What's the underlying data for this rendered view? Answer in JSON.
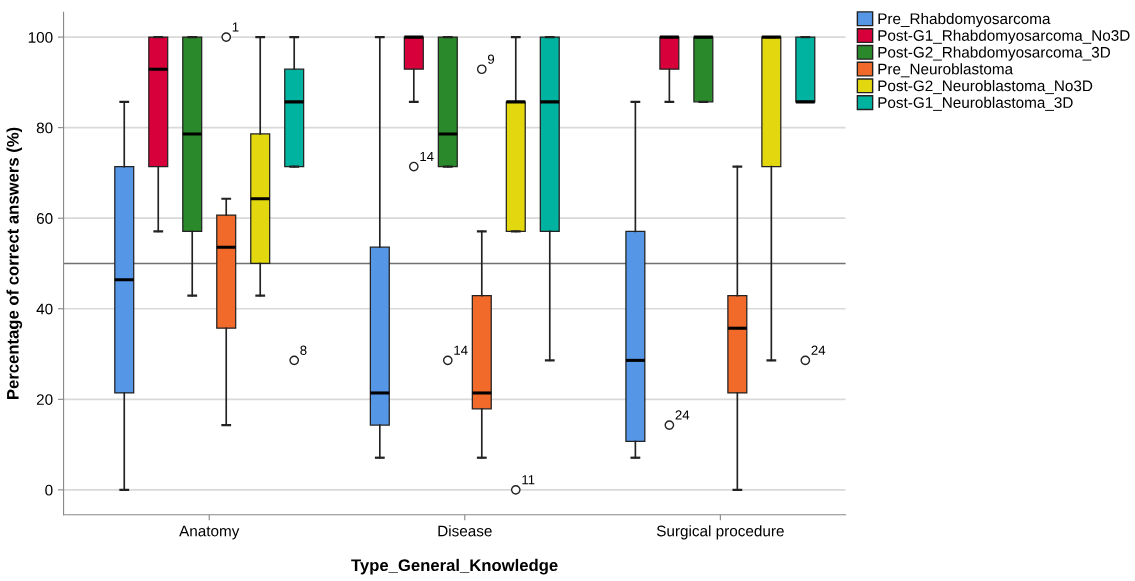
{
  "chart_data": {
    "type": "box",
    "xlabel": "Type_General_Knowledge",
    "ylabel": "Percentage of correct answers (%)",
    "categories": [
      "Anatomy",
      "Disease",
      "Surgical procedure"
    ],
    "ylim": [
      -5.5,
      105.5
    ],
    "yticks": [
      0,
      20,
      40,
      60,
      80,
      100
    ],
    "grid": "y",
    "legend": "top right",
    "ref_lines": [
      {
        "axis": "y",
        "value": 50,
        "color": "#707070"
      }
    ],
    "series": [
      {
        "name": "Pre_Rhabdomyosarcoma",
        "color": "#5596e6",
        "boxes": [
          {
            "low": 0,
            "q1": 21.4,
            "median": 46.4,
            "q3": 71.4,
            "high": 85.7
          },
          {
            "low": 7.1,
            "q1": 14.3,
            "median": 21.4,
            "q3": 53.6,
            "high": 100
          },
          {
            "low": 7.1,
            "q1": 10.7,
            "median": 28.6,
            "q3": 57.1,
            "high": 85.7
          }
        ]
      },
      {
        "name": "Post-G1_Rhabdomyosarcoma_No3D",
        "color": "#d7003a",
        "boxes": [
          {
            "low": 57.1,
            "q1": 71.4,
            "median": 92.9,
            "q3": 100,
            "high": 100
          },
          {
            "low": 85.7,
            "q1": 92.9,
            "median": 100,
            "q3": 100,
            "high": 100,
            "outliers": [
              71.4
            ]
          },
          {
            "low": 85.7,
            "q1": 92.9,
            "median": 100,
            "q3": 100,
            "high": 100,
            "outliers": [
              14.3
            ]
          }
        ]
      },
      {
        "name": "Post-G2_Rhabdomyosarcoma_3D",
        "color": "#2a8a2b",
        "boxes": [
          {
            "low": 42.9,
            "q1": 57.1,
            "median": 78.6,
            "q3": 100,
            "high": 100
          },
          {
            "low": 71.4,
            "q1": 71.4,
            "median": 78.6,
            "q3": 100,
            "high": 100,
            "outliers": [
              28.6
            ]
          },
          {
            "low": 85.7,
            "q1": 85.7,
            "median": 100,
            "q3": 100,
            "high": 100
          }
        ]
      },
      {
        "name": "Pre_Neuroblastoma",
        "color": "#f26a2a",
        "boxes": [
          {
            "low": 14.3,
            "q1": 35.7,
            "median": 53.6,
            "q3": 60.7,
            "high": 64.3,
            "outliers": [
              100
            ]
          },
          {
            "low": 7.1,
            "q1": 17.9,
            "median": 21.4,
            "q3": 42.9,
            "high": 57.1,
            "outliers": [
              92.9
            ]
          },
          {
            "low": 0,
            "q1": 21.4,
            "median": 35.7,
            "q3": 42.9,
            "high": 71.4
          }
        ]
      },
      {
        "name": "Post-G2_Neuroblastoma_No3D",
        "color": "#e3d80f",
        "boxes": [
          {
            "low": 42.9,
            "q1": 50,
            "median": 64.3,
            "q3": 78.6,
            "high": 100
          },
          {
            "low": 57.1,
            "q1": 57.1,
            "median": 85.7,
            "q3": 85.7,
            "high": 100,
            "outliers": [
              0
            ]
          },
          {
            "low": 28.6,
            "q1": 71.4,
            "median": 100,
            "q3": 100,
            "high": 100
          }
        ]
      },
      {
        "name": "Post-G1_Neuroblastoma_3D",
        "color": "#00b3a0",
        "boxes": [
          {
            "low": 71.4,
            "q1": 71.4,
            "median": 85.7,
            "q3": 92.9,
            "high": 100,
            "outliers": [
              28.6
            ]
          },
          {
            "low": 28.6,
            "q1": 57.1,
            "median": 85.7,
            "q3": 100,
            "high": 100
          },
          {
            "low": 85.7,
            "q1": 85.7,
            "median": 85.7,
            "q3": 100,
            "high": 100,
            "outliers": [
              28.6
            ]
          }
        ]
      }
    ],
    "annotations": [
      "14",
      "24",
      "14",
      "1",
      "9",
      "11",
      "8",
      "24"
    ]
  }
}
